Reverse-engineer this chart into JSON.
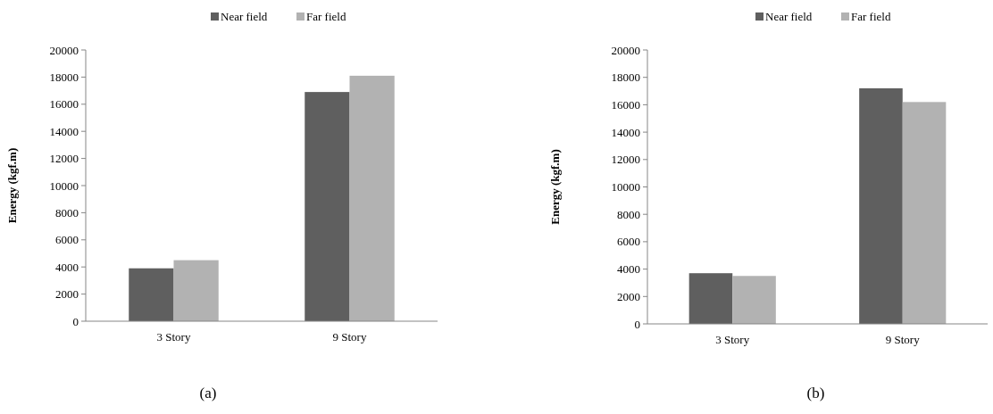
{
  "chart_data": [
    {
      "type": "bar",
      "categories": [
        "3 Story",
        "9 Story"
      ],
      "ylabel": "Energy  (kgf.m)",
      "ylim": [
        0,
        20000
      ],
      "yticks": [
        0,
        2000,
        4000,
        6000,
        8000,
        10000,
        12000,
        14000,
        16000,
        18000,
        20000
      ],
      "grid": false,
      "legend": "top",
      "annotations": [
        "(a)"
      ],
      "series": [
        {
          "name": "Near field",
          "color": "#5f5f5f",
          "values": [
            3900,
            16900
          ]
        },
        {
          "name": "Far field",
          "color": "#b2b2b2",
          "values": [
            4500,
            18100
          ]
        }
      ]
    },
    {
      "type": "bar",
      "categories": [
        "3 Story",
        "9 Story"
      ],
      "ylabel": "Energy  (kgf.m)",
      "ylim": [
        0,
        20000
      ],
      "yticks": [
        0,
        2000,
        4000,
        6000,
        8000,
        10000,
        12000,
        14000,
        16000,
        18000,
        20000
      ],
      "grid": false,
      "legend": "top",
      "annotations": [
        "(b)"
      ],
      "series": [
        {
          "name": "Near field",
          "color": "#5f5f5f",
          "values": [
            3700,
            17200
          ]
        },
        {
          "name": "Far field",
          "color": "#b2b2b2",
          "values": [
            3500,
            16200
          ]
        }
      ]
    }
  ]
}
